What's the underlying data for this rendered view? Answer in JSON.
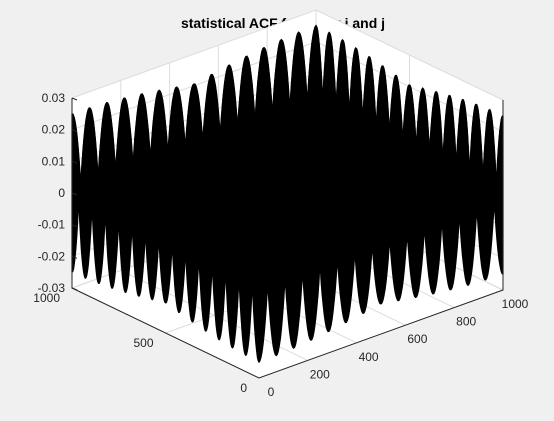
{
  "chart_data": {
    "type": "surface",
    "title": "statistical ACF for every i and j",
    "x": {
      "label": "",
      "range": [
        0,
        1000
      ],
      "ticks": [
        "0",
        "200",
        "400",
        "600",
        "800",
        "1000"
      ]
    },
    "y": {
      "label": "",
      "range": [
        0,
        1000
      ],
      "ticks": [
        "0",
        "500",
        "1000"
      ]
    },
    "z": {
      "label": "",
      "range": [
        -0.03,
        0.03
      ],
      "ticks": [
        "-0.03",
        "-0.02",
        "-0.01",
        "0",
        "0.01",
        "0.02",
        "0.03"
      ]
    },
    "surface": {
      "color": "#000000",
      "amplitude": 0.025,
      "ridges_per_edge": 14
    },
    "grid": true,
    "box_color": "#262626",
    "grid_color": "#dcdcdc",
    "axes_background": "#ffffff",
    "figure_background": "#f0f0f0"
  }
}
